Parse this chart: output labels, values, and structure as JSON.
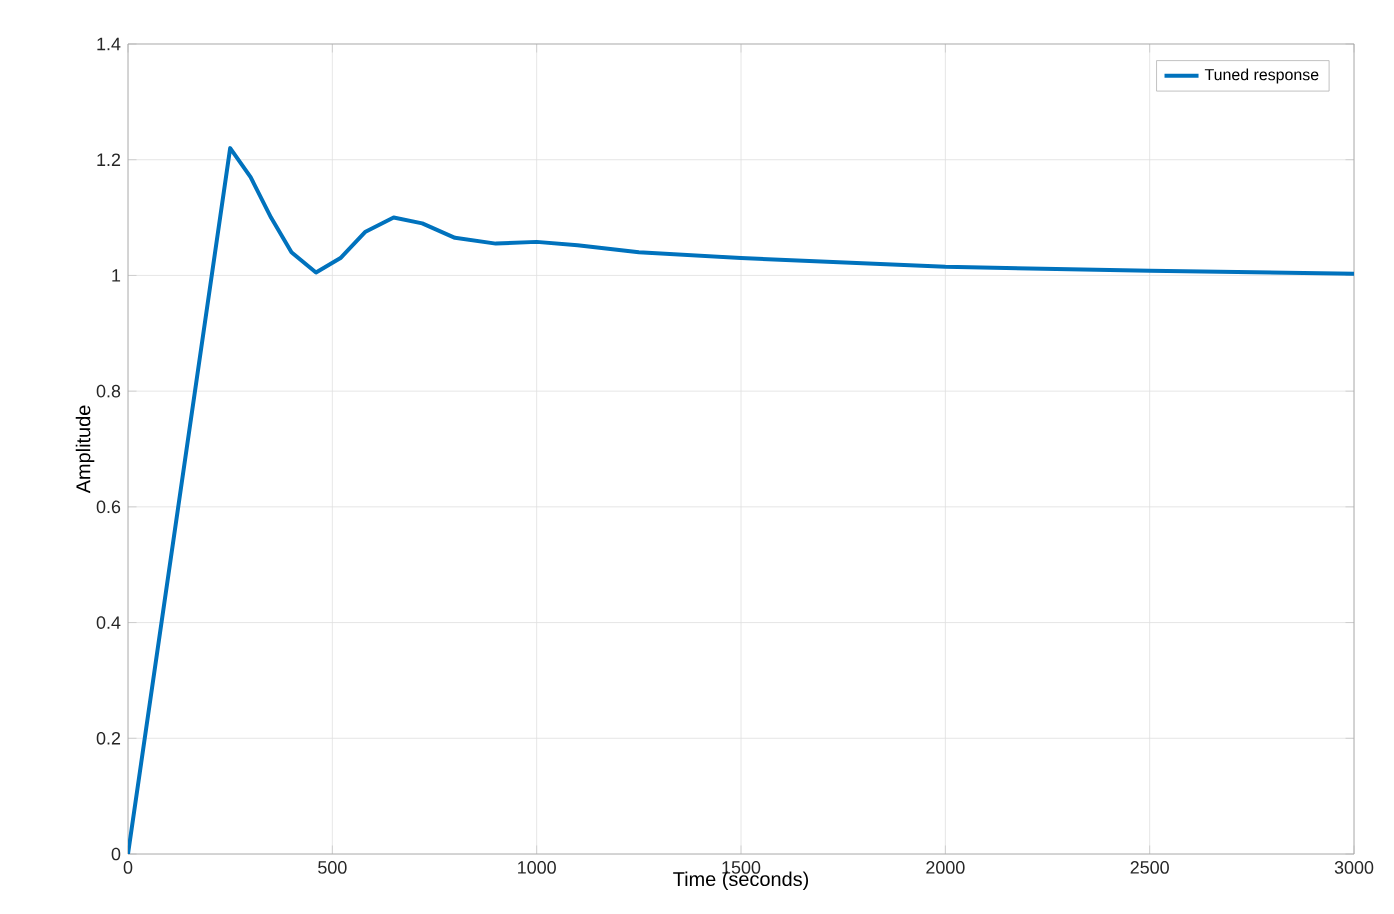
{
  "chart_data": {
    "type": "line",
    "xlabel": "Time (seconds)",
    "ylabel": "Amplitude",
    "x": [
      0,
      250,
      300,
      350,
      400,
      460,
      520,
      580,
      650,
      720,
      800,
      900,
      1000,
      1100,
      1250,
      1500,
      2000,
      2500,
      3000
    ],
    "series": [
      {
        "name": "Tuned response",
        "color": "#0072bd",
        "values": [
          0,
          1.22,
          1.17,
          1.1,
          1.04,
          1.005,
          1.03,
          1.075,
          1.1,
          1.09,
          1.065,
          1.055,
          1.058,
          1.052,
          1.04,
          1.03,
          1.015,
          1.008,
          1.003
        ]
      }
    ],
    "xlim": [
      0,
      3000
    ],
    "ylim": [
      0,
      1.4
    ],
    "xticks": [
      0,
      500,
      1000,
      1500,
      2000,
      2500,
      3000
    ],
    "yticks": [
      0,
      0.2,
      0.4,
      0.6,
      0.8,
      1,
      1.2,
      1.4
    ],
    "grid": true,
    "legend": "top right",
    "marker": "none",
    "line_style": "solid"
  }
}
